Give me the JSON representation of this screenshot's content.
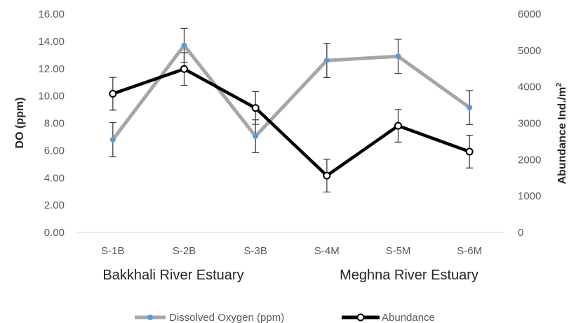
{
  "chart_data": {
    "type": "line",
    "categories": [
      "S-1B",
      "S-2B",
      "S-3B",
      "S-4M",
      "S-5M",
      "S-6M"
    ],
    "group_labels": [
      "Bakkhali River Estuary",
      "Meghna River Estuary"
    ],
    "y_left": {
      "label": "DO (ppm)",
      "lim": [
        0,
        16
      ],
      "ticks": [
        "0.00",
        "2.00",
        "4.00",
        "6.00",
        "8.00",
        "10.00",
        "12.00",
        "14.00",
        "16.00"
      ]
    },
    "y_right": {
      "label": "Abundance Ind./m",
      "label_sup": "2",
      "lim": [
        0,
        6000
      ],
      "ticks": [
        "0",
        "1000",
        "2000",
        "3000",
        "4000",
        "5000",
        "6000"
      ]
    },
    "series": [
      {
        "name": "Dissolved Oxygen (ppm)",
        "axis": "left",
        "values": [
          6.8,
          13.7,
          7.05,
          12.6,
          12.9,
          9.15
        ],
        "error": [
          1.25,
          1.25,
          1.2,
          1.25,
          1.25,
          1.25
        ],
        "line_color": "#a6a6a6",
        "marker_color": "#5b9bd5"
      },
      {
        "name": "Abundance",
        "axis": "right",
        "values": [
          3810,
          4490,
          3420,
          1560,
          2930,
          2220
        ],
        "error": [
          450,
          450,
          450,
          450,
          450,
          450
        ],
        "line_color": "#000000",
        "marker_color": "#ffffff"
      }
    ],
    "grid": false,
    "legend": "bottom"
  }
}
